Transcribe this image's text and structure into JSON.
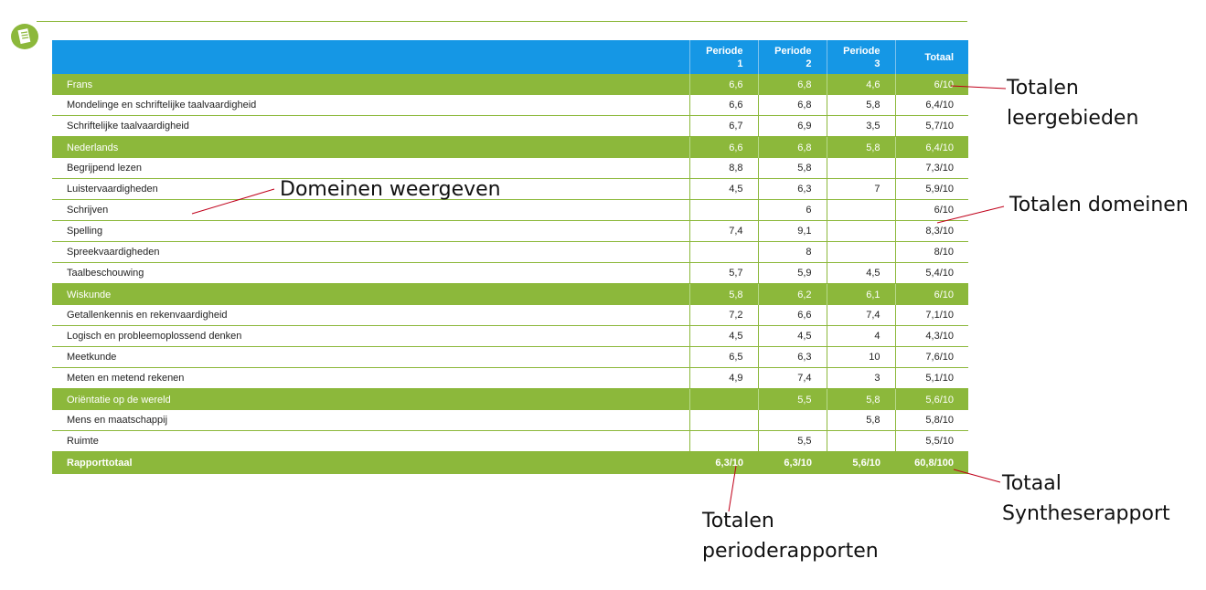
{
  "table": {
    "headers": {
      "p1": [
        "Periode",
        "1"
      ],
      "p2": [
        "Periode",
        "2"
      ],
      "p3": [
        "Periode",
        "3"
      ],
      "total": "Totaal"
    },
    "rows": [
      {
        "kind": "group",
        "name": "Frans",
        "p1": "6,6",
        "p2": "6,8",
        "p3": "4,6",
        "total": "6/10"
      },
      {
        "kind": "domain",
        "name": "Mondelinge en schriftelijke taalvaardigheid",
        "p1": "6,6",
        "p2": "6,8",
        "p3": "5,8",
        "total": "6,4/10"
      },
      {
        "kind": "domain",
        "name": "Schriftelijke taalvaardigheid",
        "p1": "6,7",
        "p2": "6,9",
        "p3": "3,5",
        "total": "5,7/10"
      },
      {
        "kind": "group",
        "name": "Nederlands",
        "p1": "6,6",
        "p2": "6,8",
        "p3": "5,8",
        "total": "6,4/10"
      },
      {
        "kind": "domain",
        "name": "Begrijpend lezen",
        "p1": "8,8",
        "p2": "5,8",
        "p3": "",
        "total": "7,3/10"
      },
      {
        "kind": "domain",
        "name": "Luistervaardigheden",
        "p1": "4,5",
        "p2": "6,3",
        "p3": "7",
        "total": "5,9/10"
      },
      {
        "kind": "domain",
        "name": "Schrijven",
        "p1": "",
        "p2": "6",
        "p3": "",
        "total": "6/10"
      },
      {
        "kind": "domain",
        "name": "Spelling",
        "p1": "7,4",
        "p2": "9,1",
        "p3": "",
        "total": "8,3/10"
      },
      {
        "kind": "domain",
        "name": "Spreekvaardigheden",
        "p1": "",
        "p2": "8",
        "p3": "",
        "total": "8/10"
      },
      {
        "kind": "domain",
        "name": "Taalbeschouwing",
        "p1": "5,7",
        "p2": "5,9",
        "p3": "4,5",
        "total": "5,4/10"
      },
      {
        "kind": "group",
        "name": "Wiskunde",
        "p1": "5,8",
        "p2": "6,2",
        "p3": "6,1",
        "total": "6/10"
      },
      {
        "kind": "domain",
        "name": "Getallenkennis en rekenvaardigheid",
        "p1": "7,2",
        "p2": "6,6",
        "p3": "7,4",
        "total": "7,1/10"
      },
      {
        "kind": "domain",
        "name": "Logisch en probleemoplossend denken",
        "p1": "4,5",
        "p2": "4,5",
        "p3": "4",
        "total": "4,3/10"
      },
      {
        "kind": "domain",
        "name": "Meetkunde",
        "p1": "6,5",
        "p2": "6,3",
        "p3": "10",
        "total": "7,6/10"
      },
      {
        "kind": "domain",
        "name": "Meten en metend rekenen",
        "p1": "4,9",
        "p2": "7,4",
        "p3": "3",
        "total": "5,1/10"
      },
      {
        "kind": "group",
        "name": "Oriëntatie op de wereld",
        "p1": "",
        "p2": "5,5",
        "p3": "5,8",
        "total": "5,6/10"
      },
      {
        "kind": "domain",
        "name": "Mens en maatschappij",
        "p1": "",
        "p2": "",
        "p3": "5,8",
        "total": "5,8/10"
      },
      {
        "kind": "domain",
        "name": "Ruimte",
        "p1": "",
        "p2": "5,5",
        "p3": "",
        "total": "5,5/10"
      }
    ],
    "footer": {
      "name": "Rapporttotaal",
      "p1": "6,3/10",
      "p2": "6,3/10",
      "p3": "5,6/10",
      "total": "60,8/100"
    }
  },
  "annotations": {
    "totalen_leergebieden": [
      "Totalen",
      "leergebieden"
    ],
    "domeinen_weergeven": "Domeinen weergeven",
    "totalen_domeinen": "Totalen domeinen",
    "totaal_syntheserapport": [
      "Totaal",
      "Syntheserapport"
    ],
    "totalen_perioderapporten": [
      "Totalen",
      "perioderapporten"
    ]
  },
  "colors": {
    "header": "#1597e5",
    "group": "#8cb83b",
    "annotation_line": "#c0001a"
  },
  "icons": {
    "top_left": "document-icon"
  }
}
